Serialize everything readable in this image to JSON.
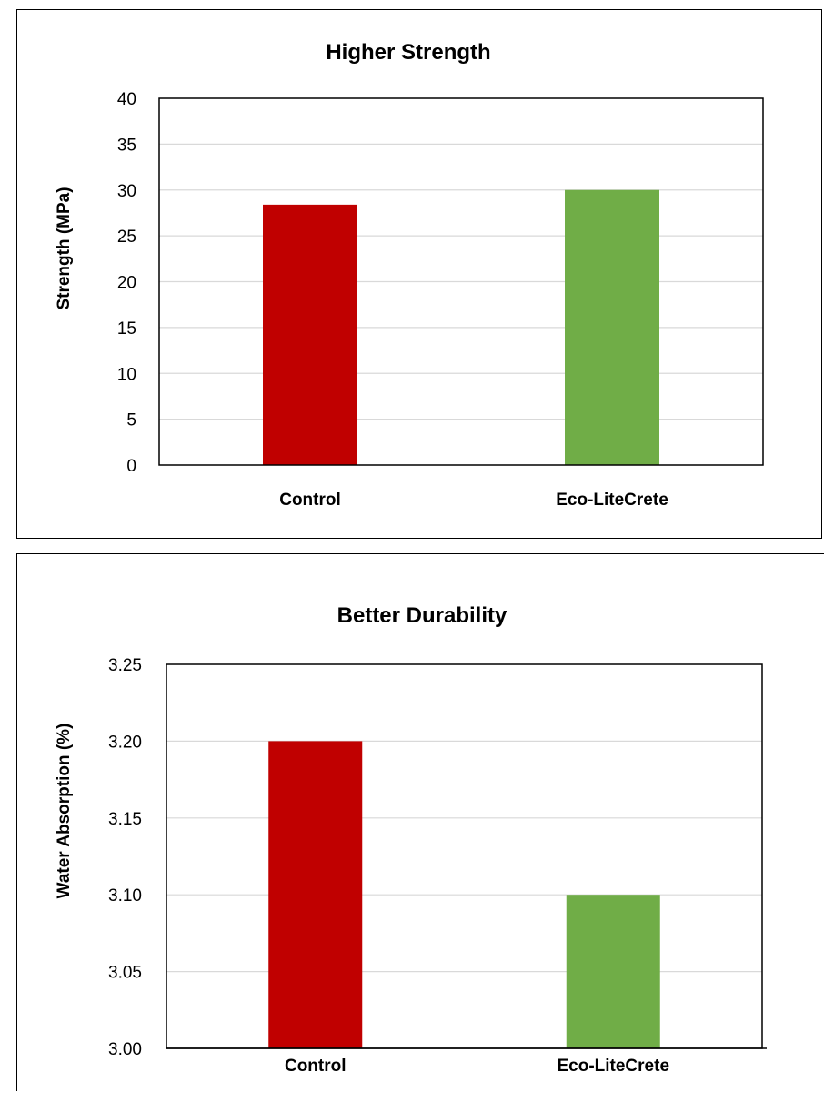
{
  "chart_data": [
    {
      "type": "bar",
      "title": "Higher  Strength",
      "xlabel": "",
      "ylabel": "Strength (MPa)",
      "categories": [
        "Control",
        "Eco-LiteCrete"
      ],
      "values": [
        28.4,
        30.0
      ],
      "colors": [
        "#c00000",
        "#70ad47"
      ],
      "ylim": [
        0,
        40
      ],
      "yticks": [
        0,
        5,
        10,
        15,
        20,
        25,
        30,
        35,
        40
      ],
      "ytick_labels": [
        "0",
        "5",
        "10",
        "15",
        "20",
        "25",
        "30",
        "35",
        "40"
      ],
      "grid": true,
      "legend": "none"
    },
    {
      "type": "bar",
      "title": "Better Durability",
      "xlabel": "",
      "ylabel": "Water Absorption (%)",
      "categories": [
        "Control",
        "Eco-LiteCrete"
      ],
      "values": [
        3.2,
        3.1
      ],
      "colors": [
        "#c00000",
        "#70ad47"
      ],
      "ylim": [
        3.0,
        3.25
      ],
      "yticks": [
        3.0,
        3.05,
        3.1,
        3.15,
        3.2,
        3.25
      ],
      "ytick_labels": [
        "3.00",
        "3.05",
        "3.10",
        "3.15",
        "3.20",
        "3.25"
      ],
      "grid": true,
      "legend": "none"
    }
  ]
}
